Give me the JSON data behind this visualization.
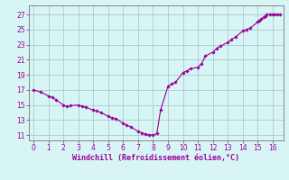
{
  "x": [
    0,
    0.5,
    1,
    1.25,
    1.5,
    2,
    2.25,
    2.5,
    3,
    3.25,
    3.5,
    4,
    4.25,
    4.5,
    5,
    5.25,
    5.5,
    6,
    6.25,
    6.5,
    7,
    7.25,
    7.5,
    7.75,
    8,
    8.25,
    8.5,
    9,
    9.25,
    9.5,
    10,
    10.25,
    10.5,
    11,
    11.25,
    11.5,
    12,
    12.25,
    12.5,
    13,
    13.25,
    13.5,
    14,
    14.25,
    14.5,
    15,
    15.1,
    15.2,
    15.4,
    15.5,
    15.6,
    15.8,
    16,
    16.1,
    16.3,
    16.5
  ],
  "y": [
    17.0,
    16.7,
    16.2,
    16.0,
    15.7,
    15.0,
    14.8,
    14.9,
    15.0,
    14.8,
    14.7,
    14.3,
    14.2,
    14.0,
    13.5,
    13.3,
    13.2,
    12.6,
    12.3,
    12.1,
    11.5,
    11.3,
    11.1,
    11.05,
    11.0,
    11.2,
    14.3,
    17.5,
    17.8,
    18.0,
    19.3,
    19.5,
    19.8,
    20.0,
    20.5,
    21.5,
    22.0,
    22.5,
    22.8,
    23.3,
    23.7,
    24.0,
    24.8,
    25.0,
    25.2,
    26.0,
    26.2,
    26.4,
    26.6,
    26.8,
    27.0,
    27.0,
    27.0,
    27.0,
    27.0,
    27.0
  ],
  "line_color": "#990099",
  "marker_color": "#990099",
  "bg_color": "#d8f5f5",
  "grid_color": "#aacccc",
  "axis_color": "#777777",
  "tick_color": "#990099",
  "xlabel": "Windchill (Refroidissement éolien,°C)",
  "xlabel_color": "#990099",
  "ylabel_ticks": [
    11,
    13,
    15,
    17,
    19,
    21,
    23,
    25,
    27
  ],
  "xticks": [
    0,
    1,
    2,
    3,
    4,
    5,
    6,
    7,
    8,
    9,
    10,
    11,
    12,
    13,
    14,
    15,
    16
  ],
  "xlim": [
    -0.3,
    16.7
  ],
  "ylim": [
    10.3,
    28.2
  ]
}
